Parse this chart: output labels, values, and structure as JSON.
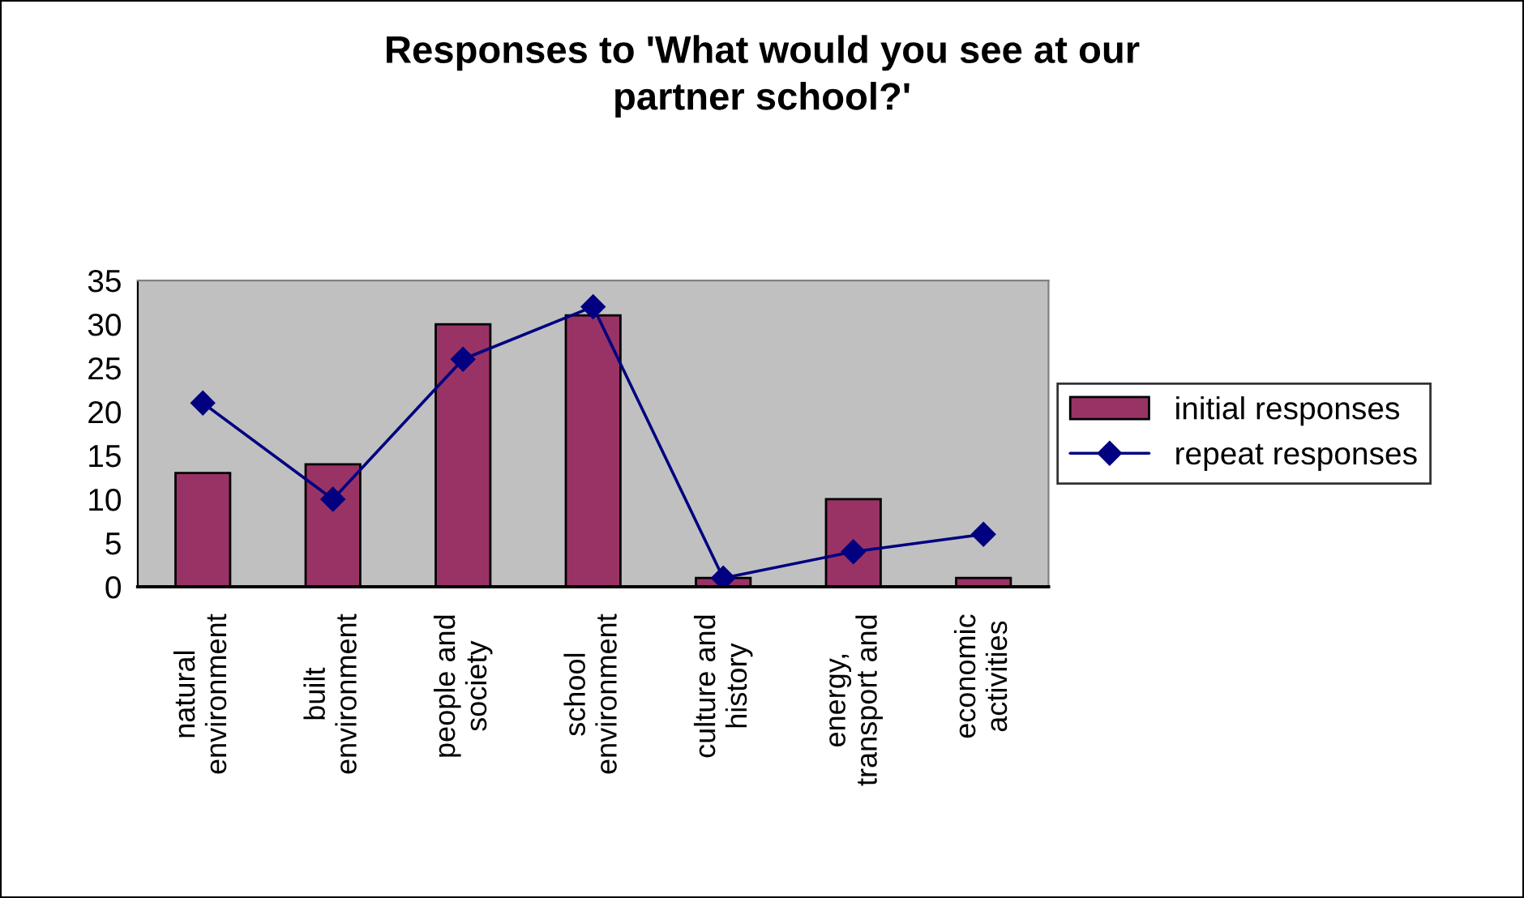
{
  "chart_data": {
    "type": "bar",
    "title": "Responses to 'What would you see at our\npartner school?'",
    "categories": [
      "natural\nenvironment",
      "built\nenvironment",
      "people and\nsociety",
      "school\nenvironment",
      "culture and\nhistory",
      "energy,\ntransport and",
      "economic\nactivities"
    ],
    "series": [
      {
        "name": "initial responses",
        "color": "#993366",
        "values": [
          13,
          14,
          30,
          31,
          1,
          10,
          1
        ]
      },
      {
        "name": "repeat responses",
        "type": "line",
        "color": "#000080",
        "values": [
          21,
          10,
          26,
          32,
          1,
          4,
          6
        ]
      }
    ],
    "ylim": [
      0,
      35
    ],
    "yticks": [
      0,
      5,
      10,
      15,
      20,
      25,
      30,
      35
    ],
    "grid": false,
    "legend": "right",
    "marker": "diamond",
    "line_style": "solid"
  }
}
